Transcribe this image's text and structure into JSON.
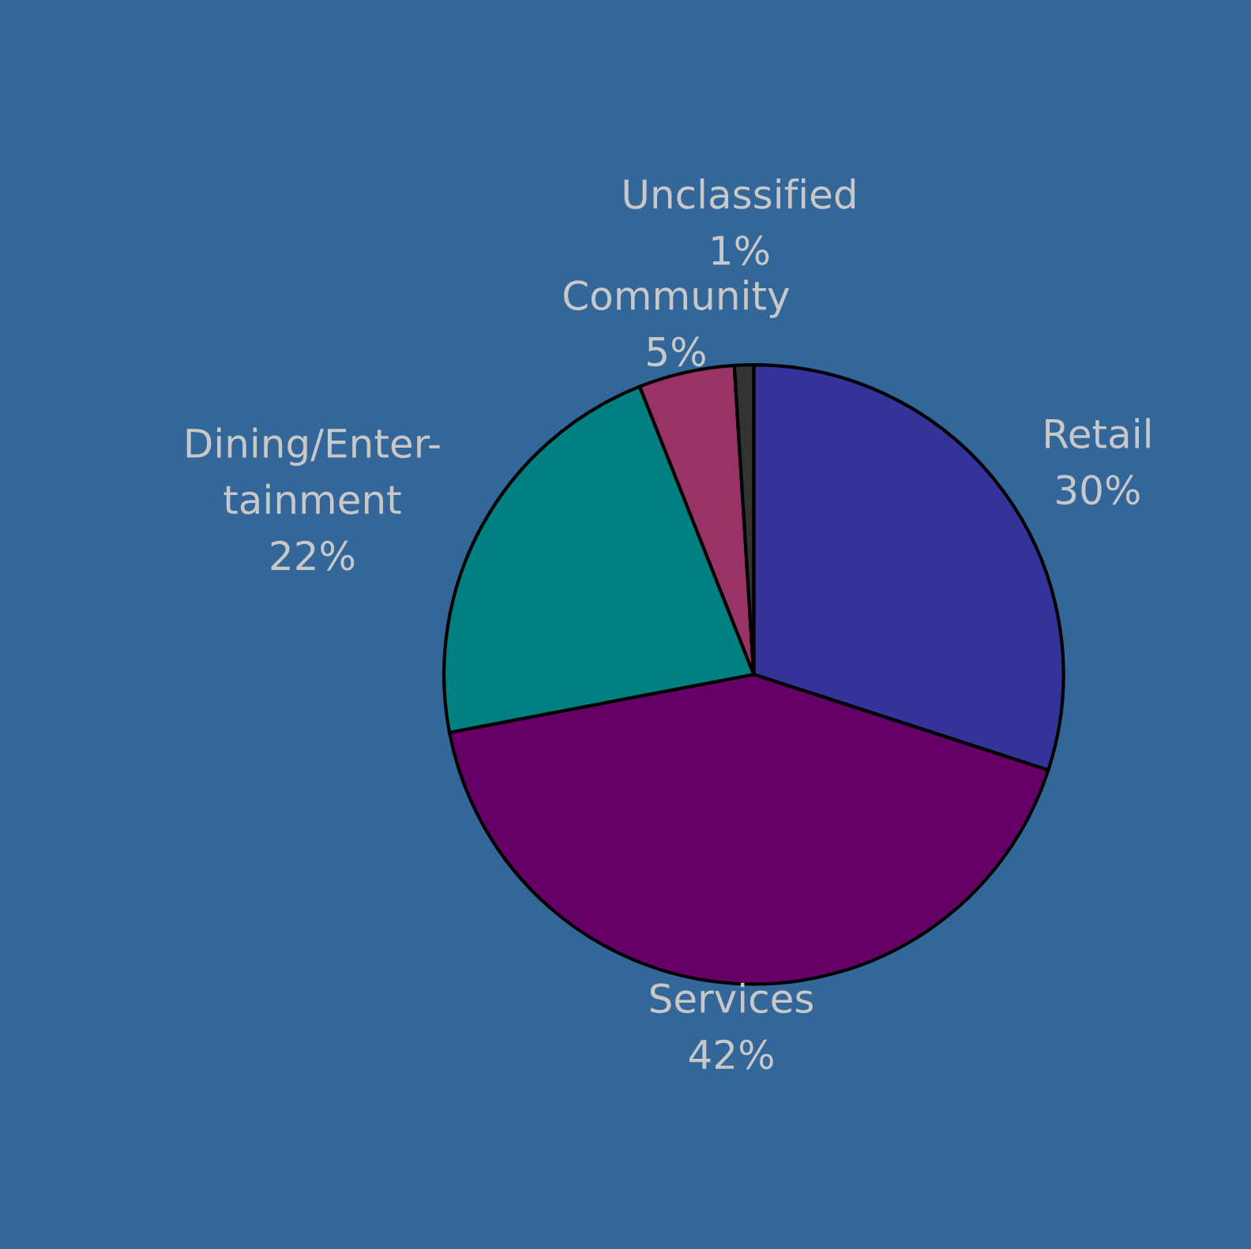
{
  "chart_data": {
    "type": "pie",
    "categories": [
      "Retail",
      "Services",
      "Dining/Enter-\ntainment",
      "Community",
      "Unclassified"
    ],
    "values": [
      30,
      42,
      22,
      5,
      1
    ],
    "value_labels": [
      "30%",
      "42%",
      "22%",
      "5%",
      "1%"
    ],
    "colors": [
      "#333399",
      "#660066",
      "#008080",
      "#993366",
      "#333333"
    ]
  }
}
